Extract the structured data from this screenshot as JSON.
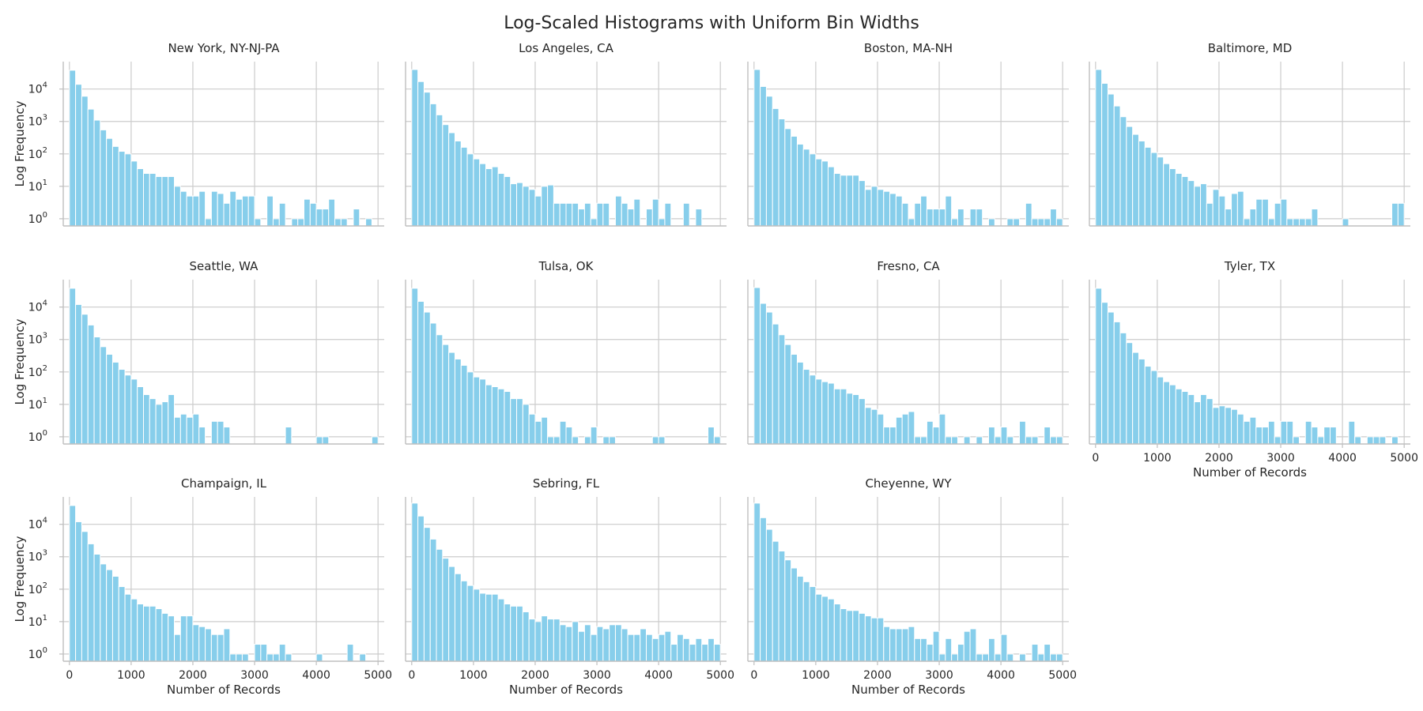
{
  "chart_data": {
    "type": "bar",
    "title": "Log-Scaled Histograms with Uniform Bin Widths",
    "xlabel": "Number of Records",
    "ylabel": "Log Frequency",
    "xlim": [
      -100,
      5100
    ],
    "ylim": [
      0.6,
      70000
    ],
    "yscale": "log",
    "xticks": [
      "0",
      "1000",
      "2000",
      "3000",
      "4000",
      "5000"
    ],
    "yticks": [
      {
        "base": "10",
        "exp": "0"
      },
      {
        "base": "10",
        "exp": "1"
      },
      {
        "base": "10",
        "exp": "2"
      },
      {
        "base": "10",
        "exp": "3"
      },
      {
        "base": "10",
        "exp": "4"
      }
    ],
    "bin_width": 100,
    "bin_starts_first": 0,
    "bar_color": "#87ceeb",
    "grid": true,
    "legend": "none",
    "panels": [
      {
        "name": "New York, NY-NJ-PA",
        "values": [
          38000,
          14000,
          6000,
          2400,
          1100,
          550,
          300,
          170,
          120,
          100,
          60,
          35,
          25,
          25,
          20,
          20,
          20,
          10,
          7,
          5,
          5,
          7,
          1,
          7,
          6,
          3,
          7,
          4,
          5,
          5,
          1,
          0,
          5,
          1,
          3,
          0,
          1,
          1,
          4,
          3,
          2,
          2,
          4,
          1,
          1,
          0,
          2,
          0,
          1,
          0
        ]
      },
      {
        "name": "Los Angeles, CA",
        "values": [
          40000,
          17000,
          8000,
          3500,
          1600,
          800,
          450,
          250,
          160,
          100,
          70,
          50,
          35,
          40,
          25,
          20,
          12,
          13,
          10,
          8,
          5,
          10,
          11,
          3,
          3,
          3,
          3,
          2,
          3,
          1,
          3,
          3,
          0,
          5,
          3,
          2,
          4,
          0,
          2,
          4,
          1,
          3,
          0,
          0,
          3,
          0,
          2,
          0,
          0,
          0
        ]
      },
      {
        "name": "Boston, MA-NH",
        "values": [
          40000,
          12000,
          6000,
          2500,
          1200,
          600,
          350,
          200,
          140,
          100,
          70,
          60,
          40,
          25,
          22,
          22,
          22,
          15,
          8,
          10,
          8,
          7,
          6,
          5,
          3,
          1,
          3,
          5,
          2,
          2,
          2,
          5,
          1,
          2,
          0,
          2,
          2,
          0,
          1,
          0,
          0,
          1,
          1,
          0,
          3,
          1,
          1,
          1,
          2,
          1
        ]
      },
      {
        "name": "Baltimore, MD",
        "values": [
          40000,
          15000,
          7000,
          3000,
          1400,
          700,
          400,
          250,
          160,
          110,
          80,
          50,
          35,
          25,
          20,
          15,
          10,
          12,
          3,
          8,
          5,
          2,
          6,
          7,
          1,
          2,
          4,
          4,
          1,
          3,
          4,
          1,
          1,
          1,
          1,
          2,
          0,
          0,
          0,
          0,
          1,
          0,
          0,
          0,
          0,
          0,
          0,
          0,
          3,
          3
        ]
      },
      {
        "name": "Seattle, WA",
        "values": [
          38000,
          12000,
          6000,
          2800,
          1200,
          600,
          350,
          200,
          120,
          80,
          60,
          35,
          20,
          15,
          10,
          12,
          20,
          4,
          5,
          4,
          5,
          2,
          0,
          3,
          3,
          2,
          0,
          0,
          0,
          0,
          0,
          0,
          0,
          0,
          0,
          2,
          0,
          0,
          0,
          0,
          1,
          1,
          0,
          0,
          0,
          0,
          0,
          0,
          0,
          1
        ]
      },
      {
        "name": "Tulsa, OK",
        "values": [
          38000,
          15000,
          7000,
          3200,
          1400,
          700,
          400,
          250,
          160,
          100,
          70,
          60,
          40,
          35,
          30,
          25,
          15,
          15,
          10,
          5,
          3,
          4,
          1,
          1,
          3,
          2,
          1,
          0,
          1,
          2,
          0,
          1,
          1,
          0,
          0,
          0,
          0,
          0,
          0,
          1,
          1,
          0,
          0,
          0,
          0,
          0,
          0,
          0,
          2,
          1
        ]
      },
      {
        "name": "Fresno, CA",
        "values": [
          40000,
          13000,
          7000,
          3000,
          1400,
          700,
          350,
          200,
          120,
          80,
          60,
          50,
          45,
          30,
          30,
          22,
          20,
          15,
          8,
          7,
          5,
          2,
          2,
          4,
          5,
          6,
          1,
          1,
          3,
          2,
          5,
          1,
          1,
          0,
          1,
          0,
          1,
          0,
          2,
          1,
          2,
          1,
          0,
          3,
          1,
          1,
          0,
          2,
          1,
          1
        ]
      },
      {
        "name": "Tyler, TX",
        "values": [
          38000,
          14000,
          7000,
          3500,
          1600,
          800,
          400,
          250,
          150,
          110,
          70,
          50,
          40,
          30,
          25,
          20,
          12,
          20,
          15,
          8,
          9,
          8,
          7,
          5,
          3,
          4,
          2,
          2,
          3,
          1,
          3,
          3,
          1,
          0,
          3,
          2,
          1,
          2,
          2,
          0,
          0,
          3,
          1,
          0,
          1,
          1,
          1,
          0,
          1,
          0
        ]
      },
      {
        "name": "Champaign, IL",
        "values": [
          38000,
          12000,
          6000,
          2500,
          1200,
          600,
          400,
          250,
          120,
          70,
          50,
          35,
          30,
          30,
          25,
          18,
          15,
          4,
          15,
          15,
          8,
          7,
          6,
          4,
          4,
          6,
          1,
          1,
          1,
          0,
          2,
          2,
          1,
          1,
          2,
          1,
          0,
          0,
          0,
          0,
          1,
          0,
          0,
          0,
          0,
          2,
          0,
          1,
          0,
          0
        ]
      },
      {
        "name": "Sebring, FL",
        "values": [
          45000,
          18000,
          8000,
          3500,
          1700,
          900,
          500,
          300,
          180,
          130,
          100,
          75,
          70,
          70,
          50,
          35,
          30,
          30,
          20,
          12,
          10,
          15,
          12,
          12,
          8,
          7,
          10,
          5,
          8,
          4,
          7,
          6,
          8,
          8,
          6,
          4,
          4,
          6,
          4,
          3,
          4,
          5,
          2,
          4,
          3,
          2,
          3,
          2,
          3,
          2
        ]
      },
      {
        "name": "Cheyenne, WY",
        "values": [
          45000,
          16000,
          7000,
          3000,
          1500,
          800,
          450,
          250,
          170,
          120,
          70,
          60,
          50,
          35,
          25,
          22,
          22,
          18,
          15,
          13,
          13,
          7,
          6,
          6,
          6,
          7,
          3,
          3,
          2,
          5,
          1,
          3,
          1,
          2,
          5,
          6,
          1,
          1,
          3,
          1,
          4,
          1,
          0,
          1,
          0,
          2,
          1,
          2,
          1,
          1
        ]
      }
    ]
  }
}
